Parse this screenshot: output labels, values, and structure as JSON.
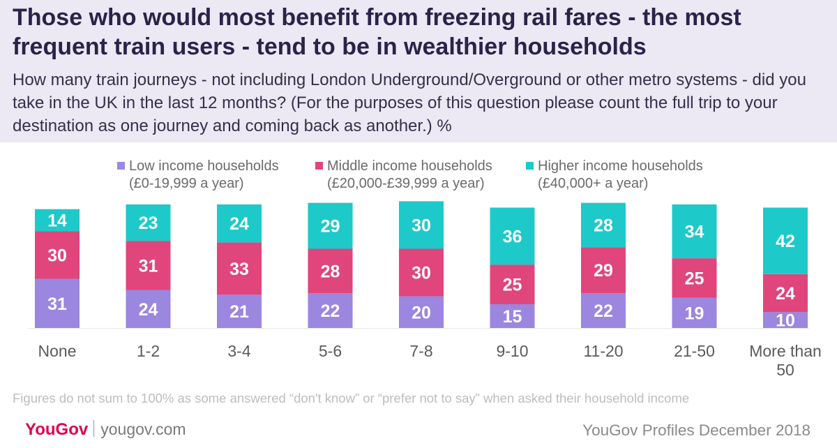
{
  "title": "Those who would most benefit from freezing rail fares - the most frequent train users - tend to be in wealthier households",
  "subtitle": "How many train journeys - not including London Underground/Overground or other metro systems - did you take in the UK in the last 12 months? (For the purposes of this question please count the full trip to your destination as one journey and coming back as another.) %",
  "legend": [
    {
      "name": "Low income households",
      "range": "(£0-19,999 a year)",
      "color": "#9b86e0"
    },
    {
      "name": "Middle income households",
      "range": "(£20,000-£39,999 a year)",
      "color": "#e0457b"
    },
    {
      "name": "Higher income households",
      "range": "(£40,000+ a year)",
      "color": "#1ec9c9"
    }
  ],
  "chart_data": {
    "type": "bar",
    "stacked": true,
    "categories": [
      "None",
      "1-2",
      "3-4",
      "5-6",
      "7-8",
      "9-10",
      "11-20",
      "21-50",
      "More than 50"
    ],
    "series": [
      {
        "name": "Low income households",
        "values": [
          31,
          24,
          21,
          22,
          20,
          15,
          22,
          19,
          10
        ]
      },
      {
        "name": "Middle income households",
        "values": [
          30,
          31,
          33,
          28,
          30,
          25,
          29,
          25,
          24
        ]
      },
      {
        "name": "Higher income households",
        "values": [
          14,
          23,
          24,
          29,
          30,
          36,
          28,
          34,
          42
        ]
      }
    ],
    "colors": [
      "#9b86e0",
      "#e0457b",
      "#1ec9c9"
    ],
    "legend_position": "top",
    "grid": false,
    "ylim": [
      0,
      80
    ]
  },
  "note": "Figures do not sum to 100% as some answered “don't know” or “prefer not to say” when asked their household income",
  "footer": {
    "logo": "YouGov",
    "site": "yougov.com",
    "source": "YouGov Profiles December 2018"
  }
}
